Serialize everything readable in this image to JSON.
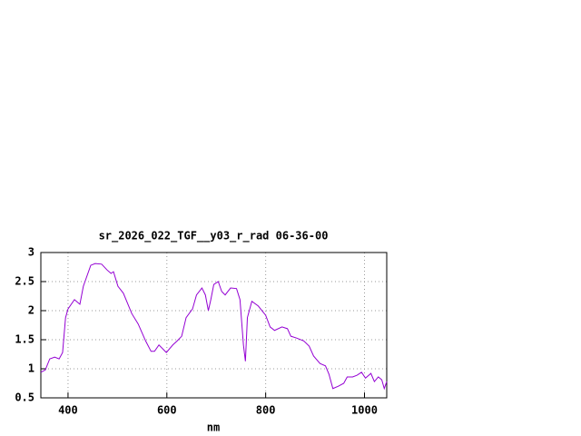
{
  "chart_data": {
    "type": "line",
    "title": "sr_2026_022_TGF__y03_r_rad 06-36-00",
    "x_label": "nm",
    "x": [
      345,
      354,
      363,
      373,
      382,
      389,
      395,
      400,
      413,
      424,
      431,
      446,
      455,
      468,
      479,
      487,
      492,
      501,
      512,
      529,
      542,
      557,
      568,
      575,
      584,
      599,
      612,
      621,
      630,
      639,
      652,
      660,
      671,
      678,
      684,
      689,
      695,
      704,
      711,
      718,
      729,
      741,
      748,
      755,
      759,
      763,
      772,
      785,
      800,
      809,
      818,
      833,
      844,
      851,
      862,
      877,
      888,
      897,
      910,
      921,
      928,
      936,
      947,
      958,
      965,
      976,
      985,
      994,
      1002,
      1013,
      1020,
      1028,
      1035,
      1040,
      1045
    ],
    "series": [
      {
        "color": "#9400d3",
        "values": [
          0.94,
          0.98,
          1.17,
          1.2,
          1.17,
          1.28,
          1.88,
          2.03,
          2.19,
          2.11,
          2.42,
          2.78,
          2.81,
          2.8,
          2.7,
          2.64,
          2.67,
          2.42,
          2.3,
          1.95,
          1.77,
          1.48,
          1.3,
          1.3,
          1.41,
          1.28,
          1.41,
          1.48,
          1.56,
          1.88,
          2.03,
          2.27,
          2.39,
          2.27,
          2.0,
          2.19,
          2.45,
          2.5,
          2.33,
          2.27,
          2.39,
          2.38,
          2.19,
          1.41,
          1.13,
          1.88,
          2.16,
          2.08,
          1.92,
          1.72,
          1.66,
          1.72,
          1.69,
          1.56,
          1.53,
          1.48,
          1.39,
          1.22,
          1.09,
          1.05,
          0.91,
          0.66,
          0.7,
          0.75,
          0.86,
          0.86,
          0.89,
          0.94,
          0.84,
          0.92,
          0.78,
          0.86,
          0.81,
          0.66,
          0.78
        ]
      }
    ],
    "xlim": [
      345,
      1045
    ],
    "xticks": [
      400,
      600,
      800,
      1000
    ],
    "ylim": [
      0.5,
      3
    ],
    "yticks": [
      0.5,
      1,
      1.5,
      2,
      2.5,
      3
    ],
    "grid": true
  }
}
